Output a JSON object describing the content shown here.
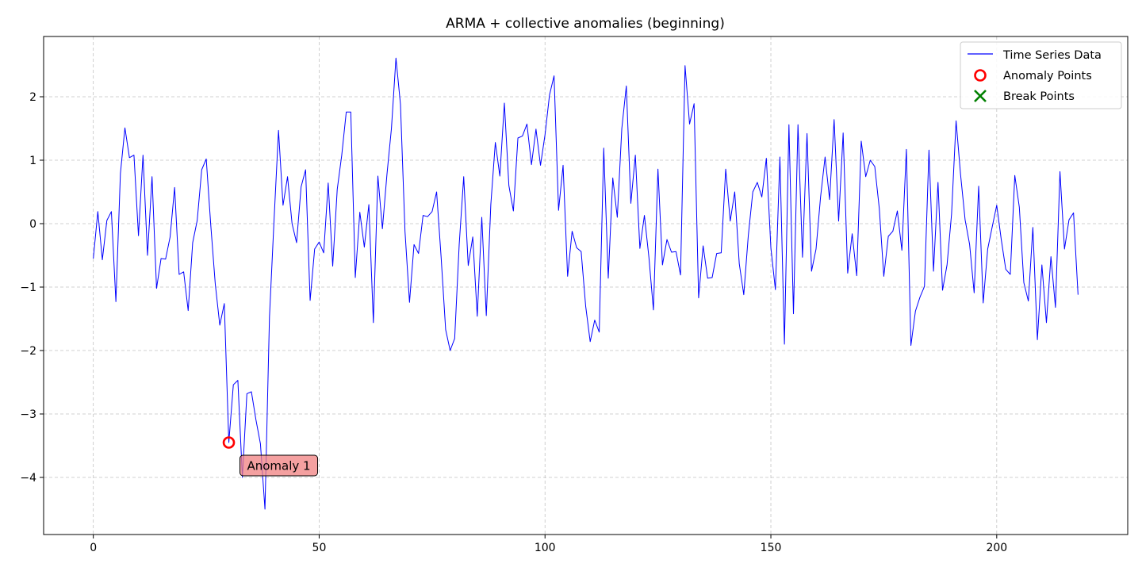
{
  "chart_data": {
    "type": "line",
    "title": "ARMA + collective anomalies (beginning)",
    "xlabel": "",
    "ylabel": "",
    "xlim": [
      -11,
      229
    ],
    "ylim": [
      -4.9,
      2.95
    ],
    "x_ticks": [
      0,
      50,
      100,
      150,
      200
    ],
    "y_ticks": [
      -4,
      -3,
      -2,
      -1,
      0,
      1,
      2
    ],
    "grid": true,
    "legend_position": "top-right",
    "series": [
      {
        "name": "Time Series Data",
        "color": "#0000ff",
        "x_start": 0,
        "values": [
          -0.55,
          0.19,
          -0.57,
          0.05,
          0.19,
          -1.23,
          0.79,
          1.51,
          1.04,
          1.08,
          -0.19,
          1.08,
          -0.5,
          0.74,
          -1.02,
          -0.55,
          -0.56,
          -0.21,
          0.57,
          -0.8,
          -0.76,
          -1.37,
          -0.3,
          0.05,
          0.85,
          1.02,
          -0.02,
          -0.95,
          -1.6,
          -1.26,
          -3.45,
          -2.54,
          -2.47,
          -4.0,
          -2.68,
          -2.65,
          -3.09,
          -3.47,
          -4.5,
          -1.47,
          0.04,
          1.47,
          0.29,
          0.74,
          0.0,
          -0.3,
          0.58,
          0.85,
          -1.21,
          -0.4,
          -0.29,
          -0.46,
          0.64,
          -0.67,
          0.54,
          1.08,
          1.76,
          1.76,
          -0.85,
          0.18,
          -0.37,
          0.3,
          -1.56,
          0.75,
          -0.08,
          0.77,
          1.5,
          2.61,
          1.88,
          -0.12,
          -1.24,
          -0.33,
          -0.47,
          0.13,
          0.11,
          0.19,
          0.5,
          -0.53,
          -1.67,
          -2.0,
          -1.81,
          -0.33,
          0.74,
          -0.66,
          -0.21,
          -1.46,
          0.1,
          -1.45,
          0.3,
          1.28,
          0.75,
          1.9,
          0.6,
          0.2,
          1.35,
          1.38,
          1.57,
          0.93,
          1.49,
          0.92,
          1.4,
          2.03,
          2.33,
          0.21,
          0.92,
          -0.83,
          -0.12,
          -0.38,
          -0.44,
          -1.3,
          -1.86,
          -1.52,
          -1.71,
          1.19,
          -0.86,
          0.72,
          0.1,
          1.5,
          2.17,
          0.32,
          1.08,
          -0.39,
          0.13,
          -0.53,
          -1.36,
          0.86,
          -0.65,
          -0.25,
          -0.45,
          -0.44,
          -0.81,
          2.49,
          1.57,
          1.89,
          -1.17,
          -0.35,
          -0.86,
          -0.85,
          -0.47,
          -0.46,
          0.86,
          0.04,
          0.5,
          -0.63,
          -1.12,
          -0.19,
          0.5,
          0.65,
          0.42,
          1.03,
          -0.38,
          -1.04,
          1.05,
          -1.9,
          1.56,
          -1.42,
          1.56,
          -0.53,
          1.42,
          -0.75,
          -0.4,
          0.42,
          1.05,
          0.38,
          1.64,
          0.04,
          1.43,
          -0.78,
          -0.16,
          -0.82,
          1.3,
          0.74,
          1.0,
          0.9,
          0.24,
          -0.83,
          -0.2,
          -0.12,
          0.2,
          -0.42,
          1.17,
          -1.92,
          -1.38,
          -1.16,
          -0.99,
          1.16,
          -0.75,
          0.65,
          -1.05,
          -0.65,
          0.15,
          1.62,
          0.77,
          0.06,
          -0.33,
          -1.09,
          0.59,
          -1.25,
          -0.4,
          -0.05,
          0.29,
          -0.25,
          -0.72,
          -0.8,
          0.76,
          0.26,
          -0.93,
          -1.22,
          -0.06,
          -1.83,
          -0.65,
          -1.56,
          -0.52,
          -1.32,
          0.82,
          -0.4,
          0.06,
          0.17,
          -1.12
        ]
      },
      {
        "name": "Anomaly Points",
        "color": "#ff0000",
        "points": [
          {
            "x": 30,
            "y": -3.45
          }
        ]
      },
      {
        "name": "Break Points",
        "color": "#008000",
        "points": []
      }
    ],
    "annotations": [
      {
        "text": "Anomaly 1",
        "x": 30,
        "y": -3.45
      }
    ]
  }
}
